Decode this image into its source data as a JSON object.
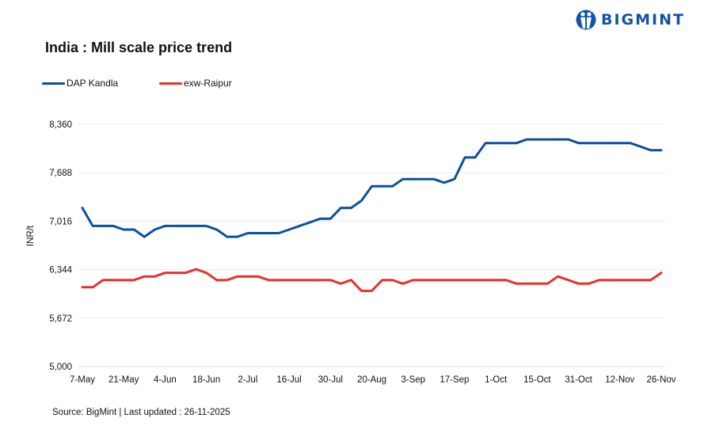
{
  "brand": {
    "name": "BIGMINT",
    "color": "#1552a8"
  },
  "source_note": "Source: BigMint | Last updated : 26-11-2025",
  "chart_data": {
    "type": "line",
    "title": "India : Mill scale price trend",
    "ylabel": "INR/t",
    "xlabel": "",
    "ylim": [
      5000,
      8360
    ],
    "yticks": [
      "5,000",
      "5,672",
      "6,344",
      "7,016",
      "7,688",
      "8,360"
    ],
    "ytick_values": [
      5000,
      5672,
      6344,
      7016,
      7688,
      8360
    ],
    "xtick_labels": [
      "7-May",
      "21-May",
      "4-Jun",
      "18-Jun",
      "2-Jul",
      "16-Jul",
      "30-Jul",
      "20-Aug",
      "3-Sep",
      "17-Sep",
      "1-Oct",
      "15-Oct",
      "31-Oct",
      "12-Nov",
      "26-Nov"
    ],
    "grid": true,
    "legend": "top-left",
    "series": [
      {
        "name": "DAP Kandla",
        "color": "#0d4fa3",
        "values": [
          7200,
          6950,
          6950,
          6950,
          6900,
          6900,
          6800,
          6900,
          6950,
          6950,
          6950,
          6950,
          6950,
          6900,
          6800,
          6800,
          6850,
          6850,
          6850,
          6850,
          6900,
          6950,
          7000,
          7050,
          7050,
          7200,
          7200,
          7300,
          7500,
          7500,
          7500,
          7600,
          7600,
          7600,
          7600,
          7550,
          7600,
          7900,
          7900,
          8100,
          8100,
          8100,
          8100,
          8150,
          8150,
          8150,
          8150,
          8150,
          8100,
          8100,
          8100,
          8100,
          8100,
          8100,
          8050,
          8000,
          8000
        ]
      },
      {
        "name": "exw-Raipur",
        "color": "#e8302f",
        "values": [
          6100,
          6100,
          6200,
          6200,
          6200,
          6200,
          6250,
          6250,
          6300,
          6300,
          6300,
          6350,
          6300,
          6200,
          6200,
          6250,
          6250,
          6250,
          6200,
          6200,
          6200,
          6200,
          6200,
          6200,
          6200,
          6150,
          6200,
          6050,
          6050,
          6200,
          6200,
          6150,
          6200,
          6200,
          6200,
          6200,
          6200,
          6200,
          6200,
          6200,
          6200,
          6200,
          6150,
          6150,
          6150,
          6150,
          6250,
          6200,
          6150,
          6150,
          6200,
          6200,
          6200,
          6200,
          6200,
          6200,
          6300
        ]
      }
    ]
  }
}
